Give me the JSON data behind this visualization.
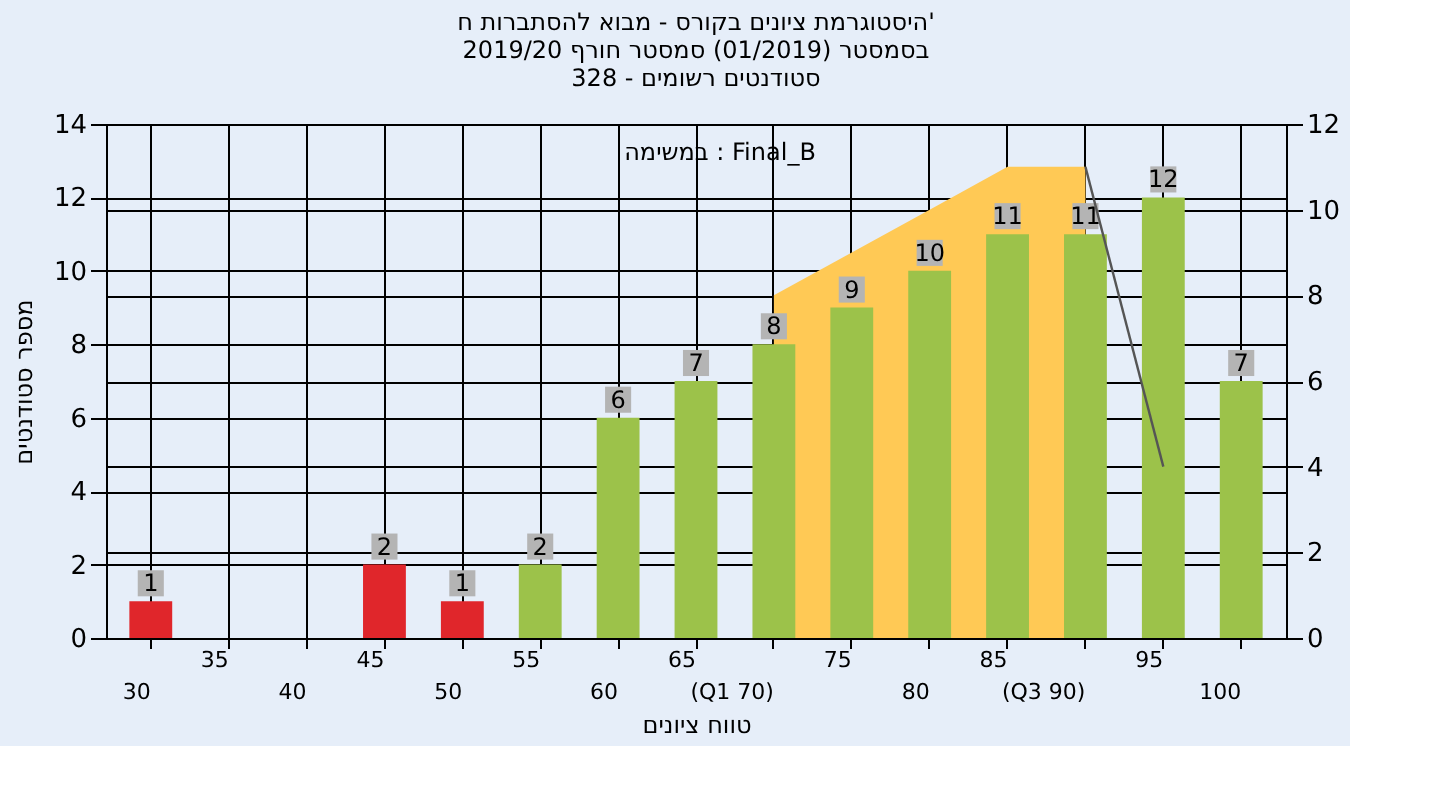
{
  "chart_data": {
    "type": "bar",
    "title": [
      "היסטוגרמת ציונים בקורס - מבוא להסתברות ח'",
      "בסמסטר (01/2019) סמסטר חורף 2019/20",
      "סטודנטים רשומים - 328"
    ],
    "xlabel": "טווח ציונים",
    "ylabel": "מספר סטודנטים",
    "annotations": [
      "במשימה : Final_B"
    ],
    "categories": [
      "30",
      "35",
      "40",
      "45",
      "50",
      "55",
      "60",
      "65",
      "(Q1 70)",
      "75",
      "80",
      "85",
      "(Q3 90)",
      "95",
      "100"
    ],
    "series": [
      {
        "value_labels": [
          "1",
          null,
          null,
          "2",
          "1",
          "2",
          "6",
          "7",
          "8",
          "9",
          "10",
          "11",
          "11",
          "12",
          "7"
        ],
        "colors": [
          "#e0262b",
          "#e0262b",
          "#e0262b",
          "#e0262b",
          "#e0262b",
          "#9cc24a",
          "#9cc24a",
          "#9cc24a",
          "#9cc24a",
          "#9cc24a",
          "#9cc24a",
          "#9cc24a",
          "#9cc24a",
          "#9cc24a",
          "#9cc24a"
        ],
        "values": [
          1,
          null,
          null,
          2,
          1,
          2,
          6,
          7,
          8,
          9,
          10,
          11,
          11,
          12,
          7
        ]
      },
      {
        "type": "area",
        "axis": "y2",
        "color": "#ffc955",
        "values": [
          null,
          null,
          null,
          null,
          null,
          null,
          null,
          null,
          8,
          9,
          10,
          11,
          11,
          null,
          null
        ]
      },
      {
        "type": "line",
        "axis": "y2",
        "color": "#555555",
        "values": [
          null,
          null,
          null,
          null,
          null,
          null,
          null,
          null,
          null,
          null,
          null,
          null,
          11,
          4,
          null
        ]
      }
    ],
    "ylim": [
      0,
      14
    ],
    "yticks": [
      0,
      2,
      4,
      6,
      8,
      10,
      12,
      14
    ],
    "y2lim": [
      0,
      12
    ],
    "y2ticks": [
      0,
      2,
      4,
      6,
      8,
      10,
      12
    ],
    "grid": true
  }
}
